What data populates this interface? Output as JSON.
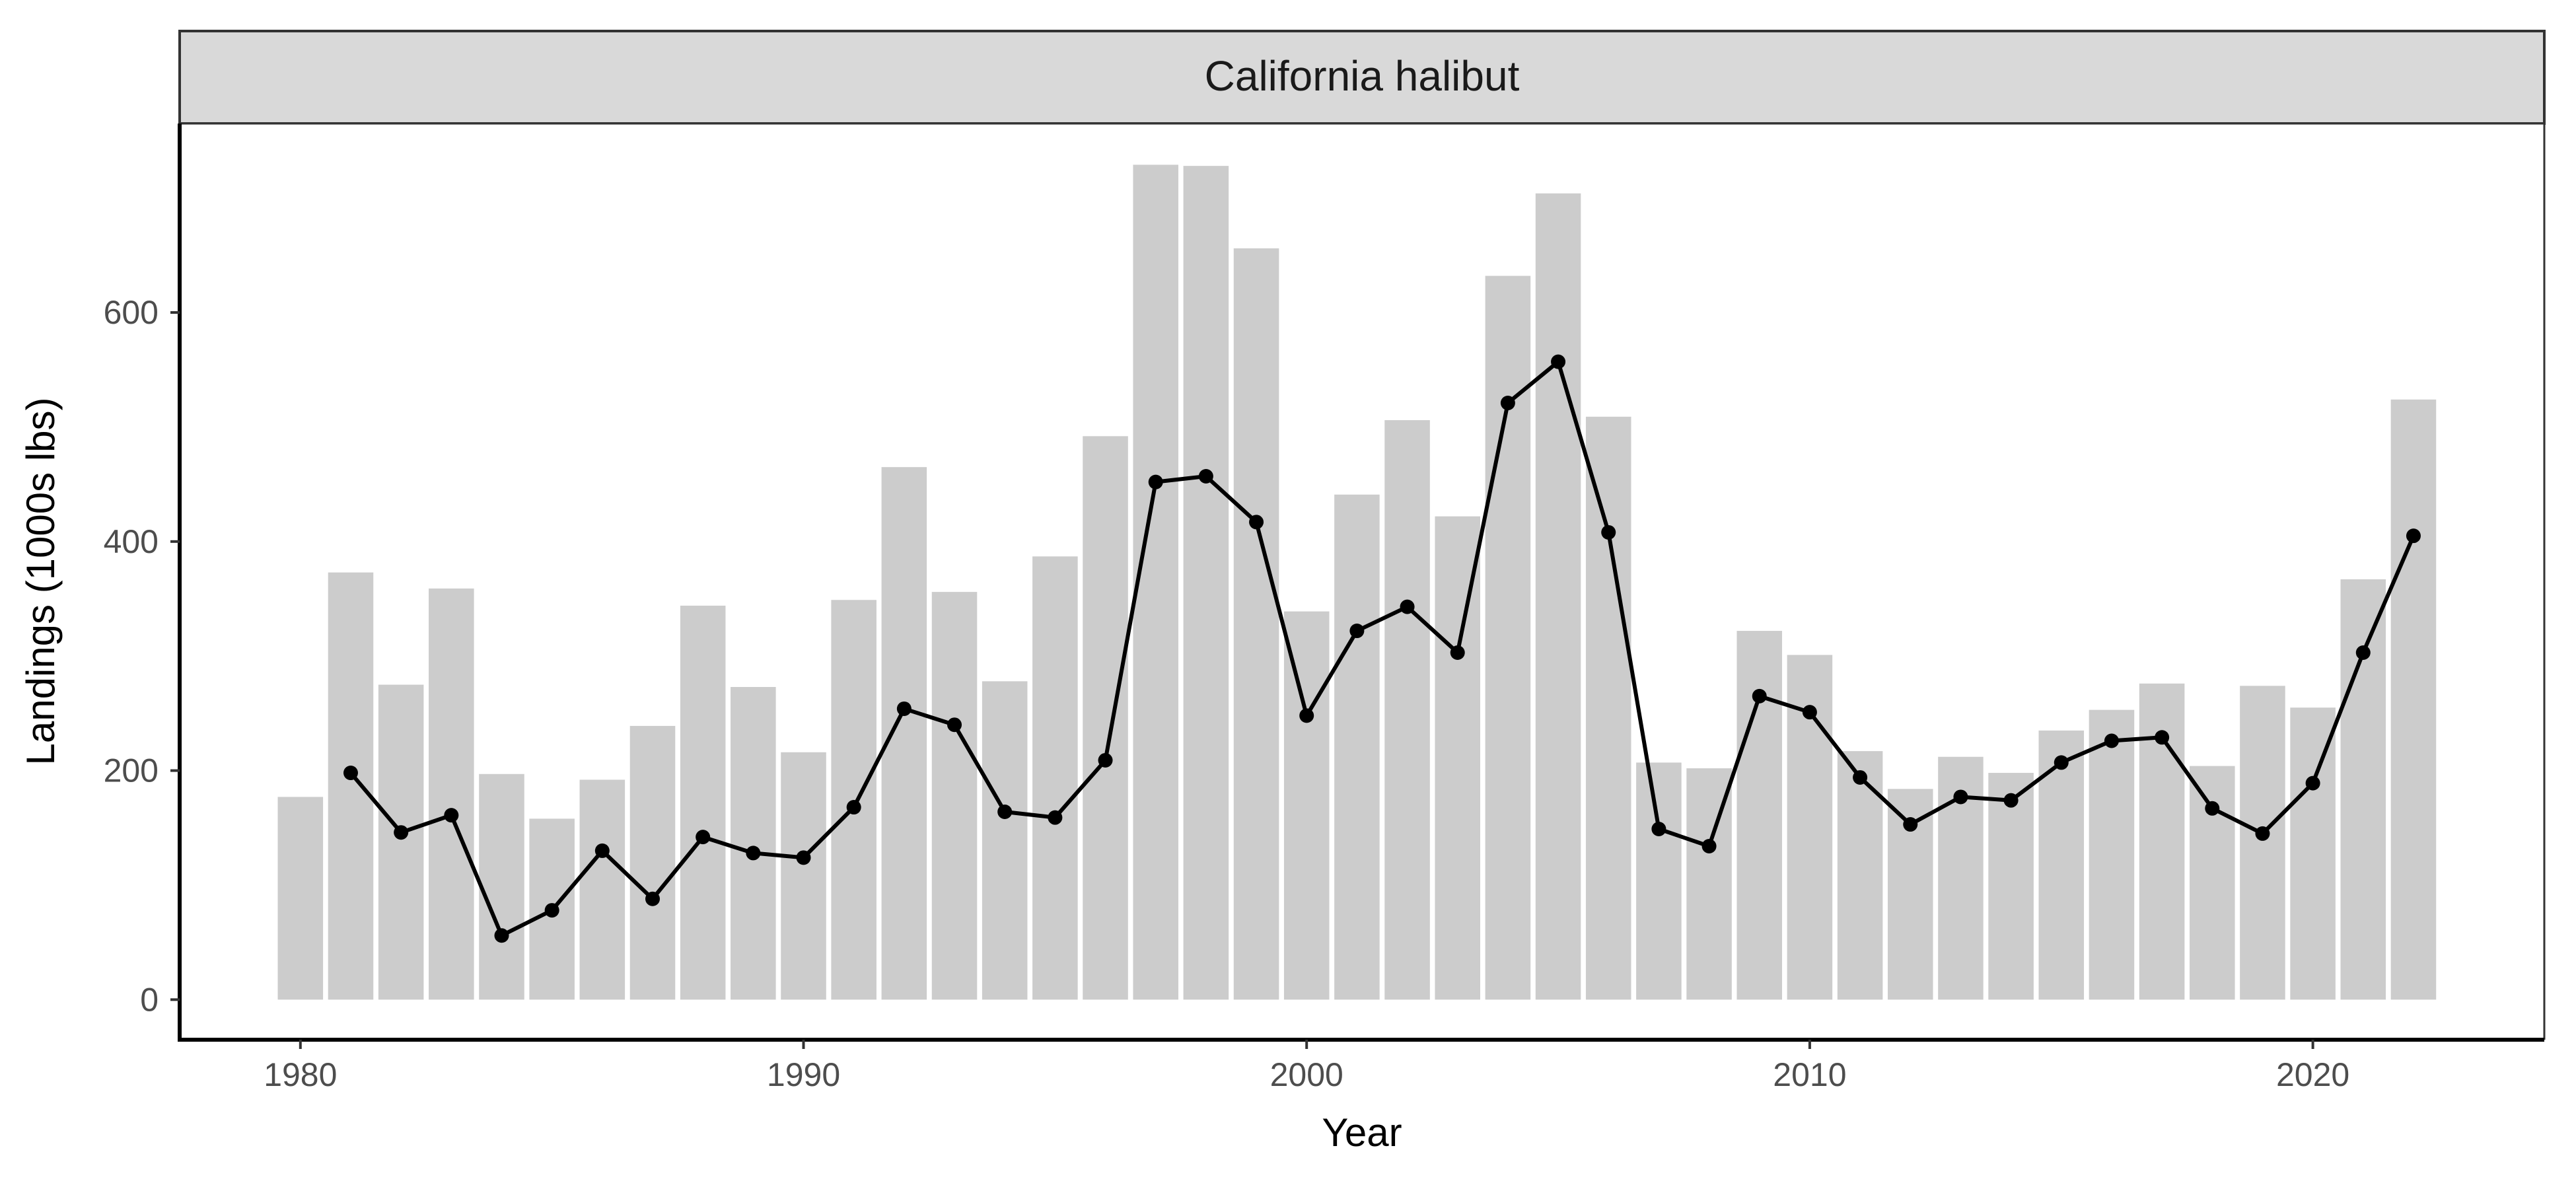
{
  "chart_data": {
    "type": "bar+line",
    "facet_title": "California halibut",
    "xlabel": "Year",
    "ylabel": "Landings (1000s lbs)",
    "xlim": [
      1977.6,
      2024.6
    ],
    "ylim": [
      -35,
      765
    ],
    "x_ticks": [
      1980,
      1990,
      2000,
      2010,
      2020
    ],
    "y_ticks": [
      0,
      200,
      400,
      600
    ],
    "grid": false,
    "colors": {
      "bars": "#cccccc",
      "line": "#000000",
      "strip": "#d9d9d9"
    },
    "bars": {
      "x": [
        1980,
        1981,
        1982,
        1983,
        1984,
        1985,
        1986,
        1987,
        1988,
        1989,
        1990,
        1991,
        1992,
        1993,
        1994,
        1995,
        1996,
        1997,
        1998,
        1999,
        2000,
        2001,
        2002,
        2003,
        2004,
        2005,
        2006,
        2007,
        2008,
        2009,
        2010,
        2011,
        2012,
        2013,
        2014,
        2015,
        2016,
        2017,
        2018,
        2019,
        2020,
        2021,
        2022
      ],
      "values": [
        177,
        373,
        275,
        359,
        197,
        158,
        192,
        239,
        344,
        273,
        216,
        349,
        465,
        356,
        278,
        387,
        492,
        729,
        728,
        656,
        339,
        441,
        506,
        422,
        632,
        704,
        509,
        207,
        202,
        322,
        301,
        217,
        184,
        212,
        198,
        235,
        253,
        276,
        204,
        274,
        255,
        367,
        524
      ]
    },
    "line": {
      "x": [
        1981,
        1982,
        1983,
        1984,
        1985,
        1986,
        1987,
        1988,
        1989,
        1990,
        1991,
        1992,
        1993,
        1994,
        1995,
        1996,
        1997,
        1998,
        1999,
        2000,
        2001,
        2002,
        2003,
        2004,
        2005,
        2006,
        2007,
        2008,
        2009,
        2010,
        2011,
        2012,
        2013,
        2014,
        2015,
        2016,
        2017,
        2018,
        2019,
        2020,
        2021,
        2022
      ],
      "values": [
        198,
        146,
        161,
        56,
        78,
        130,
        88,
        142,
        128,
        124,
        168,
        254,
        240,
        164,
        159,
        209,
        452,
        457,
        417,
        248,
        322,
        343,
        303,
        521,
        557,
        408,
        149,
        134,
        265,
        251,
        194,
        153,
        177,
        174,
        207,
        226,
        229,
        167,
        145,
        189,
        303,
        405
      ]
    }
  }
}
